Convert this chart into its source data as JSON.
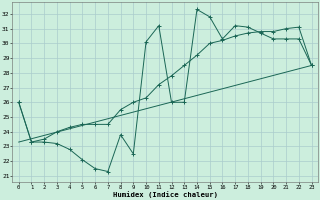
{
  "title": "",
  "xlabel": "Humidex (Indice chaleur)",
  "background_color": "#cceedd",
  "grid_color": "#aacccc",
  "line_color": "#1a6655",
  "xlim": [
    -0.5,
    23.5
  ],
  "ylim": [
    20.6,
    32.8
  ],
  "yticks": [
    21,
    22,
    23,
    24,
    25,
    26,
    27,
    28,
    29,
    30,
    31,
    32
  ],
  "xticks": [
    0,
    1,
    2,
    3,
    4,
    5,
    6,
    7,
    8,
    9,
    10,
    11,
    12,
    13,
    14,
    15,
    16,
    17,
    18,
    19,
    20,
    21,
    22,
    23
  ],
  "line1_x": [
    0,
    1,
    2,
    3,
    4,
    5,
    6,
    7,
    8,
    9,
    10,
    11,
    12,
    13,
    14,
    15,
    16,
    17,
    18,
    19,
    20,
    21,
    22,
    23
  ],
  "line1_y": [
    26.0,
    23.3,
    23.3,
    23.2,
    22.8,
    22.1,
    21.5,
    21.3,
    23.8,
    22.5,
    30.1,
    31.2,
    26.0,
    26.0,
    32.3,
    31.8,
    30.3,
    31.2,
    31.1,
    30.7,
    30.3,
    30.3,
    30.3,
    28.5
  ],
  "line2_x": [
    0,
    1,
    2,
    3,
    4,
    5,
    6,
    7,
    8,
    9,
    10,
    11,
    12,
    13,
    14,
    15,
    16,
    17,
    18,
    19,
    20,
    21,
    22,
    23
  ],
  "line2_y": [
    26.0,
    23.3,
    23.5,
    24.0,
    24.3,
    24.5,
    24.5,
    24.5,
    25.5,
    26.0,
    26.3,
    27.2,
    27.8,
    28.5,
    29.2,
    30.0,
    30.2,
    30.5,
    30.7,
    30.8,
    30.8,
    31.0,
    31.1,
    28.5
  ],
  "line3_x": [
    0,
    23
  ],
  "line3_y": [
    23.3,
    28.5
  ]
}
